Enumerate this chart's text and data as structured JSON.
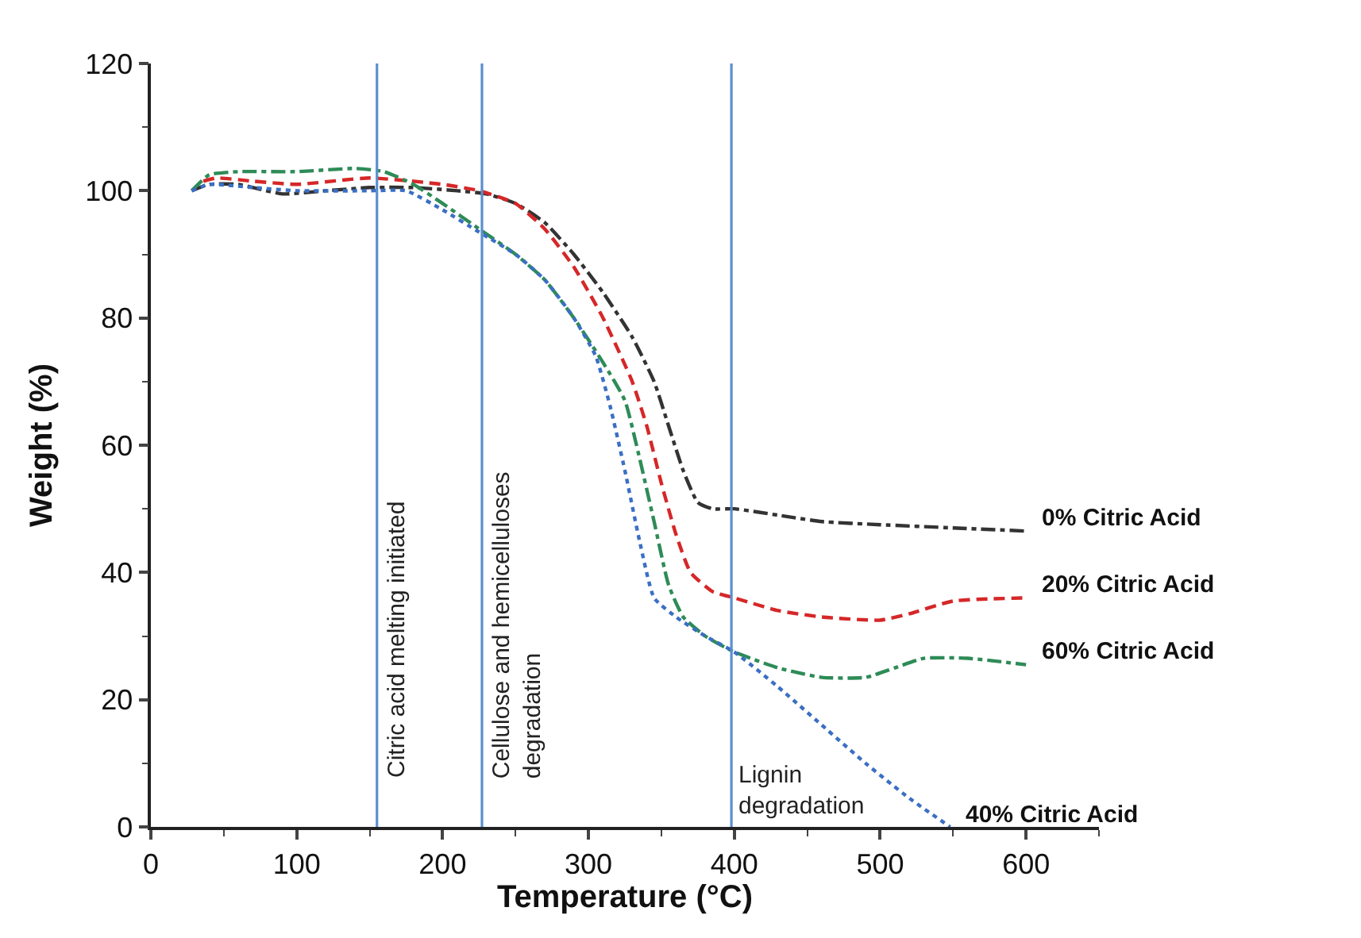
{
  "chart_data": {
    "type": "line",
    "xlabel": "Temperature (°C)",
    "ylabel": "Weight (%)",
    "xlim": [
      0,
      650
    ],
    "xticks": [
      0,
      100,
      200,
      300,
      400,
      500,
      600
    ],
    "ylim": [
      0,
      120
    ],
    "yticks": [
      0,
      20,
      40,
      60,
      80,
      100,
      120
    ],
    "legend": false,
    "marker": "none",
    "series": [
      {
        "name": "0% Citric Acid",
        "color": "#333333",
        "line_style": "dashdot",
        "x": [
          28,
          40,
          60,
          90,
          120,
          150,
          180,
          210,
          230,
          250,
          270,
          290,
          310,
          330,
          345,
          355,
          365,
          375,
          385,
          400,
          430,
          460,
          500,
          550,
          600
        ],
        "values": [
          100,
          101,
          101,
          99.5,
          100,
          100.5,
          100.5,
          100,
          99.5,
          98,
          95,
          90,
          84,
          77,
          70,
          63,
          56,
          51,
          50,
          50,
          49,
          48,
          47.5,
          47,
          46.5
        ]
      },
      {
        "name": "20% Citric Acid",
        "color": "#d62728",
        "line_style": "dashed",
        "x": [
          36,
          45,
          70,
          100,
          150,
          200,
          225,
          250,
          270,
          290,
          310,
          330,
          340,
          350,
          360,
          370,
          385,
          400,
          430,
          460,
          500,
          520,
          550,
          600
        ],
        "values": [
          101.5,
          102,
          101.5,
          101,
          102,
          101,
          100,
          98,
          94,
          88,
          80,
          70,
          63,
          54,
          46,
          40,
          37,
          36,
          34,
          33,
          32.5,
          33.5,
          35.5,
          36
        ]
      },
      {
        "name": "60% Citric Acid",
        "color": "#2e8b57",
        "line_style": "dashdot",
        "x": [
          28,
          40,
          60,
          100,
          140,
          160,
          180,
          200,
          225,
          250,
          270,
          290,
          310,
          325,
          335,
          345,
          355,
          365,
          380,
          400,
          430,
          460,
          490,
          510,
          530,
          560,
          600
        ],
        "values": [
          100,
          102.5,
          103,
          103,
          103.5,
          103,
          101,
          98,
          94,
          90,
          86,
          80,
          73,
          67,
          58,
          48,
          38,
          33,
          30,
          27.5,
          25,
          23.5,
          23.5,
          25,
          26.5,
          26.5,
          25.5
        ]
      },
      {
        "name": "40% Citric Acid",
        "color": "#3a6fc4",
        "line_style": "dotted",
        "x": [
          28,
          40,
          70,
          100,
          150,
          175,
          200,
          225,
          250,
          270,
          290,
          305,
          315,
          325,
          335,
          345,
          360,
          380,
          400,
          430,
          460,
          490,
          520,
          548
        ],
        "values": [
          100,
          101,
          100.5,
          100,
          100,
          100,
          97,
          93.5,
          90,
          86,
          80,
          74,
          66,
          56,
          45,
          36,
          33,
          30,
          27.5,
          22,
          16,
          10,
          4.5,
          0
        ]
      }
    ],
    "ref_lines": [
      {
        "axis": "x",
        "value": 155,
        "label": "Citric acid melting initiated",
        "color": "#5b8fd0"
      },
      {
        "axis": "x",
        "value": 227,
        "label": "Cellulose and hemicelluloses degradation",
        "color": "#5b8fd0"
      },
      {
        "axis": "x",
        "value": 398,
        "label": "Lignin degradation",
        "color": "#5b8fd0"
      }
    ]
  }
}
